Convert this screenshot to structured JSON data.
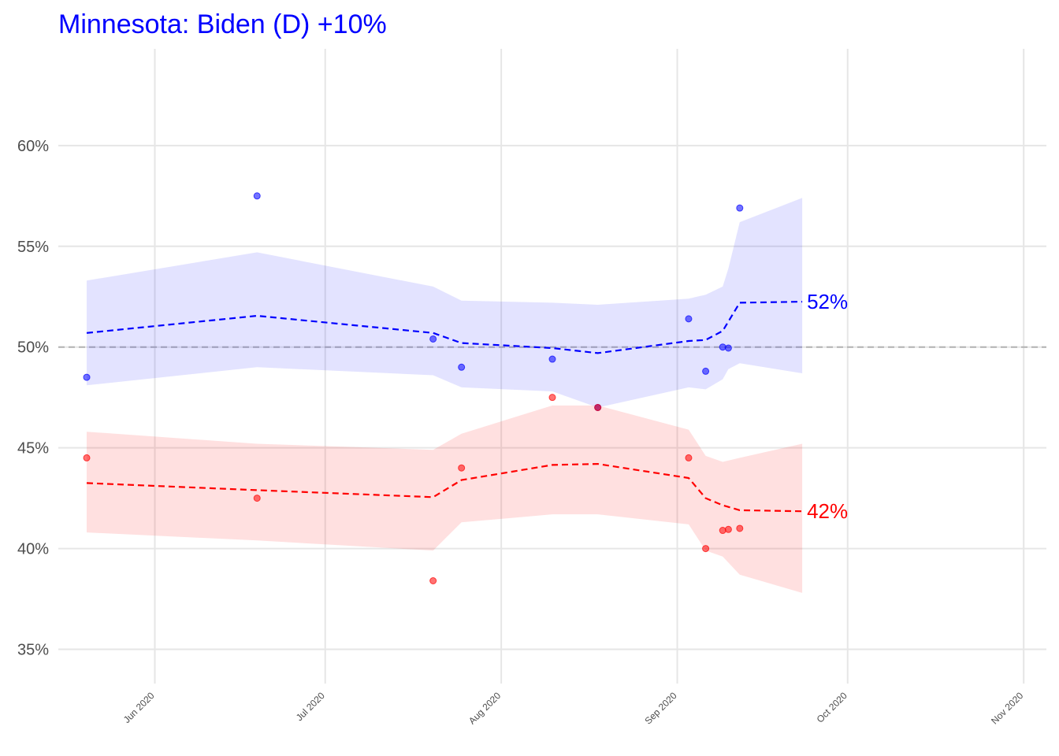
{
  "chart_data": {
    "type": "line",
    "title": "Minnesota: Biden (D) +10%",
    "title_color": "#0000ff",
    "xlabel": "",
    "ylabel": "",
    "x_axis_type": "date",
    "xlim": [
      "2020-05-15",
      "2020-11-05"
    ],
    "ylim": [
      33.3,
      64.8
    ],
    "y_ticks": [
      35,
      40,
      45,
      50,
      55,
      60
    ],
    "y_tick_labels": [
      "35%",
      "40%",
      "45%",
      "50%",
      "55%",
      "60%"
    ],
    "x_ticks": [
      "2020-06-01",
      "2020-07-01",
      "2020-08-01",
      "2020-09-01",
      "2020-10-01",
      "2020-11-01"
    ],
    "x_tick_labels": [
      "Jun 2020",
      "Jul 2020",
      "Aug 2020",
      "Sep 2020",
      "Oct 2020",
      "Nov 2020"
    ],
    "grid": true,
    "reference_line": 50,
    "series": [
      {
        "color": "#0000ff",
        "end_label": "52%",
        "trend": [
          {
            "x": "2020-05-20",
            "y": 50.7
          },
          {
            "x": "2020-06-19",
            "y": 51.55
          },
          {
            "x": "2020-07-20",
            "y": 50.7
          },
          {
            "x": "2020-07-25",
            "y": 50.2
          },
          {
            "x": "2020-08-10",
            "y": 49.95
          },
          {
            "x": "2020-08-18",
            "y": 49.7
          },
          {
            "x": "2020-09-03",
            "y": 50.3
          },
          {
            "x": "2020-09-06",
            "y": 50.35
          },
          {
            "x": "2020-09-09",
            "y": 50.8
          },
          {
            "x": "2020-09-12",
            "y": 52.2
          },
          {
            "x": "2020-09-23",
            "y": 52.25
          }
        ],
        "band": [
          {
            "x": "2020-05-20",
            "lo": 48.1,
            "hi": 53.3
          },
          {
            "x": "2020-06-19",
            "lo": 49.0,
            "hi": 54.7
          },
          {
            "x": "2020-07-20",
            "lo": 48.6,
            "hi": 53.0
          },
          {
            "x": "2020-07-25",
            "lo": 48.0,
            "hi": 52.3
          },
          {
            "x": "2020-08-10",
            "lo": 47.8,
            "hi": 52.2
          },
          {
            "x": "2020-08-18",
            "lo": 47.0,
            "hi": 52.1
          },
          {
            "x": "2020-09-03",
            "lo": 48.0,
            "hi": 52.4
          },
          {
            "x": "2020-09-06",
            "lo": 47.9,
            "hi": 52.6
          },
          {
            "x": "2020-09-09",
            "lo": 48.4,
            "hi": 53.0
          },
          {
            "x": "2020-09-10",
            "lo": 48.9,
            "hi": 53.9
          },
          {
            "x": "2020-09-12",
            "lo": 49.2,
            "hi": 56.2
          },
          {
            "x": "2020-09-23",
            "lo": 48.7,
            "hi": 57.4
          }
        ],
        "points": [
          {
            "x": "2020-05-20",
            "y": 48.5
          },
          {
            "x": "2020-06-19",
            "y": 57.5
          },
          {
            "x": "2020-07-20",
            "y": 50.4
          },
          {
            "x": "2020-07-25",
            "y": 49.0
          },
          {
            "x": "2020-08-10",
            "y": 49.4
          },
          {
            "x": "2020-08-18",
            "y": 47.0
          },
          {
            "x": "2020-09-03",
            "y": 51.4
          },
          {
            "x": "2020-09-06",
            "y": 48.8
          },
          {
            "x": "2020-09-09",
            "y": 50.0
          },
          {
            "x": "2020-09-10",
            "y": 49.95
          },
          {
            "x": "2020-09-12",
            "y": 56.9
          }
        ]
      },
      {
        "color": "#ff0000",
        "end_label": "42%",
        "trend": [
          {
            "x": "2020-05-20",
            "y": 43.25
          },
          {
            "x": "2020-06-19",
            "y": 42.9
          },
          {
            "x": "2020-07-20",
            "y": 42.55
          },
          {
            "x": "2020-07-25",
            "y": 43.4
          },
          {
            "x": "2020-08-10",
            "y": 44.15
          },
          {
            "x": "2020-08-18",
            "y": 44.2
          },
          {
            "x": "2020-09-03",
            "y": 43.5
          },
          {
            "x": "2020-09-06",
            "y": 42.5
          },
          {
            "x": "2020-09-09",
            "y": 42.15
          },
          {
            "x": "2020-09-12",
            "y": 41.9
          },
          {
            "x": "2020-09-23",
            "y": 41.85
          }
        ],
        "band": [
          {
            "x": "2020-05-20",
            "lo": 40.8,
            "hi": 45.8
          },
          {
            "x": "2020-06-19",
            "lo": 40.4,
            "hi": 45.2
          },
          {
            "x": "2020-07-20",
            "lo": 39.9,
            "hi": 44.9
          },
          {
            "x": "2020-07-25",
            "lo": 41.3,
            "hi": 45.7
          },
          {
            "x": "2020-08-10",
            "lo": 41.7,
            "hi": 47.1
          },
          {
            "x": "2020-08-18",
            "lo": 41.7,
            "hi": 47.1
          },
          {
            "x": "2020-09-03",
            "lo": 41.2,
            "hi": 45.9
          },
          {
            "x": "2020-09-06",
            "lo": 39.9,
            "hi": 44.6
          },
          {
            "x": "2020-09-09",
            "lo": 39.6,
            "hi": 44.3
          },
          {
            "x": "2020-09-12",
            "lo": 38.7,
            "hi": 44.5
          },
          {
            "x": "2020-09-23",
            "lo": 37.8,
            "hi": 45.2
          }
        ],
        "points": [
          {
            "x": "2020-05-20",
            "y": 44.5
          },
          {
            "x": "2020-06-19",
            "y": 42.5
          },
          {
            "x": "2020-07-20",
            "y": 38.4
          },
          {
            "x": "2020-07-25",
            "y": 44.0
          },
          {
            "x": "2020-08-10",
            "y": 47.5
          },
          {
            "x": "2020-08-18",
            "y": 47.0
          },
          {
            "x": "2020-09-03",
            "y": 44.5
          },
          {
            "x": "2020-09-06",
            "y": 40.0
          },
          {
            "x": "2020-09-09",
            "y": 40.9
          },
          {
            "x": "2020-09-10",
            "y": 40.95
          },
          {
            "x": "2020-09-12",
            "y": 41.0
          }
        ]
      }
    ]
  }
}
